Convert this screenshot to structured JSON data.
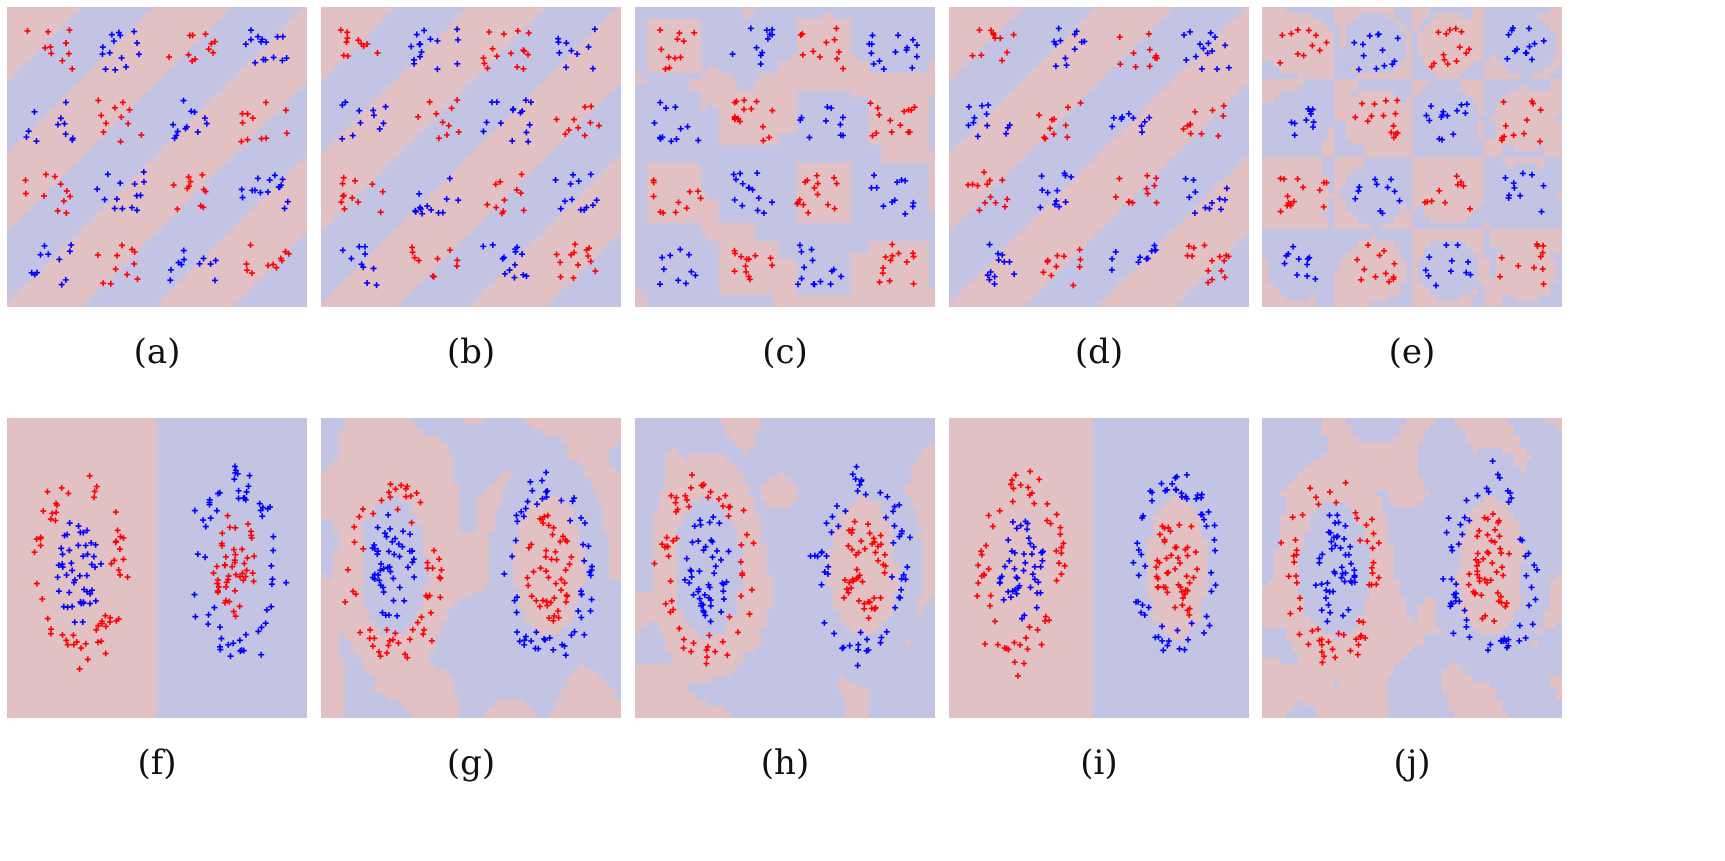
{
  "colors": {
    "class_red": "#ff0000",
    "class_blue": "#0000ff",
    "region_red": "#e2c1c5",
    "region_blue": "#c3c3e3"
  },
  "chart_data": [
    {
      "type": "scatter",
      "dataset": "checkerboard",
      "caption": "(a)",
      "boundary": "diagonal-stripes"
    },
    {
      "type": "scatter",
      "dataset": "checkerboard",
      "caption": "(b)",
      "boundary": "diagonal-stripes"
    },
    {
      "type": "scatter",
      "dataset": "checkerboard",
      "caption": "(c)",
      "boundary": "checker-blocks"
    },
    {
      "type": "scatter",
      "dataset": "checkerboard",
      "caption": "(d)",
      "boundary": "diagonal-stripes"
    },
    {
      "type": "scatter",
      "dataset": "checkerboard",
      "caption": "(e)",
      "boundary": "checker-blobs"
    },
    {
      "type": "scatter",
      "dataset": "double-rings",
      "caption": "(f)",
      "boundary": "left-right-split"
    },
    {
      "type": "scatter",
      "dataset": "double-rings",
      "caption": "(g)",
      "boundary": "noisy-rings"
    },
    {
      "type": "scatter",
      "dataset": "double-rings",
      "caption": "(h)",
      "boundary": "noisy-rings"
    },
    {
      "type": "scatter",
      "dataset": "double-rings",
      "caption": "(i)",
      "boundary": "left-split-right-blob"
    },
    {
      "type": "scatter",
      "dataset": "double-rings",
      "caption": "(j)",
      "boundary": "noisy-rings"
    }
  ]
}
